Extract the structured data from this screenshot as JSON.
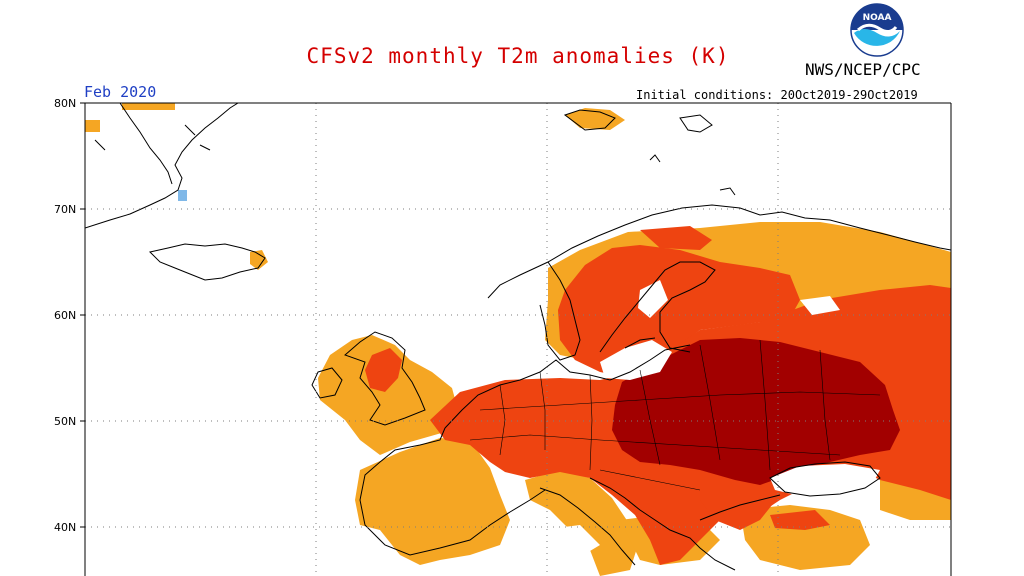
{
  "header": {
    "title": "CFSv2 monthly T2m anomalies (K)",
    "agency": "NWS/NCEP/CPC",
    "period": "Feb 2020",
    "initial_conditions": "Initial conditions: 20Oct2019-29Oct2019",
    "logo_text": "NOAA"
  },
  "axis": {
    "latitude_labels": [
      "80N",
      "70N",
      "60N",
      "50N",
      "40N"
    ]
  },
  "colors": {
    "anomaly_light": "#f5a623",
    "anomaly_medium": "#ee4411",
    "anomaly_strong": "#a20000",
    "cold": "#7fb8e8",
    "coast": "#000000",
    "grid": "#7d7d7d",
    "title": "#d40000",
    "period": "#1f3fc4"
  },
  "map": {
    "region": "Europe",
    "lat_range": [
      35,
      80
    ],
    "lon_range": [
      -30,
      60
    ]
  }
}
